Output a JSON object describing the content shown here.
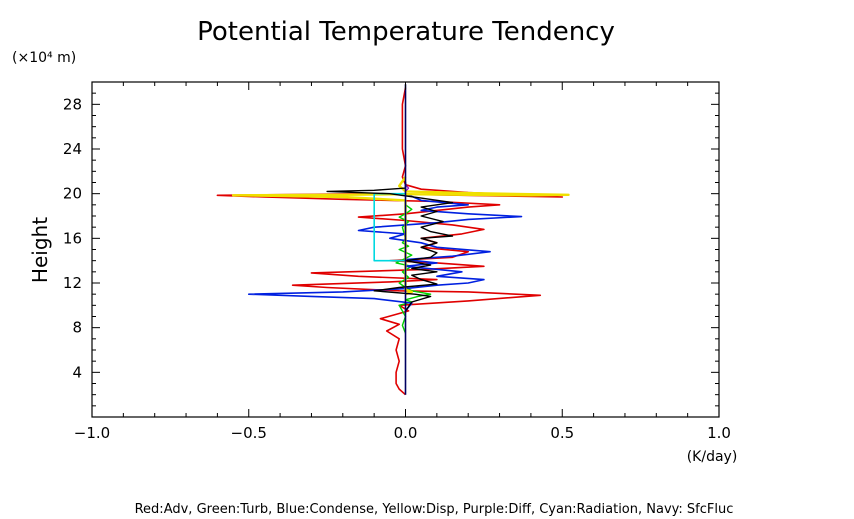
{
  "chart_data": {
    "type": "line",
    "title": "Potential Temperature Tendency",
    "ylabel": "Height",
    "yunit": "(×10⁴ m)",
    "xunit": "(K/day)",
    "xlim": [
      -1.0,
      1.0
    ],
    "ylim": [
      0,
      30
    ],
    "grid": false,
    "legend_text": "Red:Adv, Green:Turb, Blue:Condense, Yellow:Disp, Purple:Diff, Cyan:Radiation, Navy: SfcFluc",
    "x_ticks": [
      {
        "value": -1.0,
        "label": "−1.0"
      },
      {
        "value": -0.5,
        "label": "−0.5"
      },
      {
        "value": 0.0,
        "label": "0.0"
      },
      {
        "value": 0.5,
        "label": "0.5"
      },
      {
        "value": 1.0,
        "label": "1.0"
      }
    ],
    "y_ticks": [
      {
        "value": 4,
        "label": "4"
      },
      {
        "value": 8,
        "label": "8"
      },
      {
        "value": 12,
        "label": "12"
      },
      {
        "value": 16,
        "label": "16"
      },
      {
        "value": 20,
        "label": "20"
      },
      {
        "value": 24,
        "label": "24"
      },
      {
        "value": 28,
        "label": "28"
      }
    ],
    "series": [
      {
        "name": "Adv",
        "color": "#e00000",
        "width": 1.6,
        "points": [
          [
            0,
            2
          ],
          [
            -0.02,
            2.5
          ],
          [
            -0.03,
            3
          ],
          [
            -0.03,
            4
          ],
          [
            -0.02,
            5
          ],
          [
            -0.03,
            6
          ],
          [
            -0.02,
            7
          ],
          [
            -0.06,
            7.7
          ],
          [
            -0.02,
            8.3
          ],
          [
            -0.08,
            8.8
          ],
          [
            0.01,
            9.5
          ],
          [
            -0.02,
            10
          ],
          [
            0.2,
            10.4
          ],
          [
            0.43,
            10.9
          ],
          [
            0.2,
            11.2
          ],
          [
            -0.02,
            11.3
          ],
          [
            -0.25,
            11.6
          ],
          [
            -0.36,
            11.8
          ],
          [
            -0.05,
            12.1
          ],
          [
            0.1,
            12.3
          ],
          [
            -0.15,
            12.6
          ],
          [
            -0.3,
            12.9
          ],
          [
            0.05,
            13.2
          ],
          [
            0.25,
            13.5
          ],
          [
            0.1,
            13.8
          ],
          [
            -0.05,
            14.0
          ],
          [
            0.15,
            14.3
          ],
          [
            0.2,
            14.8
          ],
          [
            0.05,
            15.2
          ],
          [
            0.1,
            15.6
          ],
          [
            0.05,
            16.0
          ],
          [
            0.18,
            16.4
          ],
          [
            0.25,
            16.8
          ],
          [
            0.15,
            17.2
          ],
          [
            0.0,
            17.6
          ],
          [
            -0.15,
            17.9
          ],
          [
            0.0,
            18.2
          ],
          [
            0.1,
            18.5
          ],
          [
            0.2,
            18.8
          ],
          [
            0.3,
            19.0
          ],
          [
            0.1,
            19.3
          ],
          [
            -0.2,
            19.5
          ],
          [
            -0.45,
            19.7
          ],
          [
            -0.6,
            19.85
          ],
          [
            -0.1,
            20.0
          ],
          [
            0.3,
            19.8
          ],
          [
            0.5,
            19.7
          ],
          [
            0.2,
            20.1
          ],
          [
            0.05,
            20.4
          ],
          [
            0.0,
            20.8
          ],
          [
            -0.01,
            21.5
          ],
          [
            0.0,
            22.5
          ],
          [
            -0.01,
            24
          ],
          [
            -0.01,
            26
          ],
          [
            -0.01,
            28
          ],
          [
            0.0,
            29.5
          ]
        ]
      },
      {
        "name": "Turb",
        "color": "#00d000",
        "width": 1.4,
        "points": [
          [
            0,
            7.5
          ],
          [
            -0.01,
            8.2
          ],
          [
            0.0,
            9.0
          ],
          [
            -0.02,
            10.0
          ],
          [
            0.02,
            10.3
          ],
          [
            0.0,
            10.5
          ],
          [
            0.04,
            10.8
          ],
          [
            0.08,
            11.0
          ],
          [
            0.02,
            11.3
          ],
          [
            0.0,
            11.6
          ],
          [
            -0.02,
            12.0
          ],
          [
            0.01,
            12.5
          ],
          [
            -0.01,
            13.0
          ],
          [
            0.02,
            13.5
          ],
          [
            -0.03,
            13.8
          ],
          [
            0.0,
            14.2
          ],
          [
            0.02,
            14.5
          ],
          [
            -0.02,
            15.0
          ],
          [
            0.01,
            15.3
          ],
          [
            -0.01,
            15.6
          ],
          [
            0.0,
            16.0
          ],
          [
            -0.01,
            17.0
          ],
          [
            0.01,
            17.5
          ],
          [
            -0.02,
            17.9
          ],
          [
            0.0,
            18.2
          ],
          [
            0.02,
            18.6
          ],
          [
            0.0,
            19.0
          ]
        ]
      },
      {
        "name": "Condense",
        "color": "#0020e0",
        "width": 1.6,
        "points": [
          [
            0,
            9.5
          ],
          [
            0.02,
            10.2
          ],
          [
            -0.1,
            10.6
          ],
          [
            -0.3,
            10.8
          ],
          [
            -0.5,
            11.0
          ],
          [
            -0.2,
            11.2
          ],
          [
            0.0,
            11.5
          ],
          [
            0.1,
            11.8
          ],
          [
            0.2,
            12.0
          ],
          [
            0.25,
            12.3
          ],
          [
            0.1,
            12.6
          ],
          [
            0.18,
            13.0
          ],
          [
            0.0,
            13.5
          ],
          [
            0.1,
            13.8
          ],
          [
            0.0,
            14.1
          ],
          [
            0.15,
            14.4
          ],
          [
            0.27,
            14.8
          ],
          [
            0.1,
            15.2
          ],
          [
            0.05,
            15.6
          ],
          [
            -0.05,
            16.0
          ],
          [
            0.0,
            16.4
          ],
          [
            -0.15,
            16.7
          ],
          [
            -0.1,
            17.0
          ],
          [
            0.1,
            17.4
          ],
          [
            0.2,
            17.7
          ],
          [
            0.37,
            17.95
          ],
          [
            0.2,
            18.2
          ],
          [
            0.05,
            18.5
          ],
          [
            0.1,
            18.8
          ],
          [
            0.2,
            19.0
          ],
          [
            0.05,
            19.4
          ],
          [
            0.0,
            20.0
          ],
          [
            0.0,
            21.0
          ]
        ]
      },
      {
        "name": "Disp",
        "color": "#f0e000",
        "width": 2.4,
        "points": [
          [
            0,
            11.0
          ],
          [
            0.02,
            11.2
          ],
          [
            0.0,
            11.4
          ],
          [
            0.0,
            19.4
          ],
          [
            -0.2,
            19.7
          ],
          [
            -0.4,
            19.8
          ],
          [
            -0.55,
            19.85
          ],
          [
            -0.2,
            19.9
          ],
          [
            0.0,
            19.95
          ],
          [
            0.2,
            19.9
          ],
          [
            0.4,
            19.85
          ],
          [
            0.52,
            19.9
          ],
          [
            0.2,
            20.05
          ],
          [
            0.0,
            20.2
          ],
          [
            -0.02,
            20.7
          ],
          [
            0.0,
            21.5
          ]
        ]
      },
      {
        "name": "Diff",
        "color": "#9000c0",
        "width": 1.2,
        "points": [
          [
            0,
            20.2
          ],
          [
            0.01,
            20.5
          ],
          [
            0.0,
            20.8
          ]
        ]
      },
      {
        "name": "Radiation",
        "color": "#00d8e0",
        "width": 1.6,
        "points": [
          [
            0,
            14.0
          ],
          [
            -0.1,
            14.0
          ],
          [
            -0.1,
            17.0
          ],
          [
            -0.1,
            20.0
          ],
          [
            0.0,
            20.0
          ]
        ]
      },
      {
        "name": "SfcFluc",
        "color": "#000060",
        "width": 1.6,
        "points": [
          [
            0,
            2
          ],
          [
            0,
            29.8
          ]
        ]
      },
      {
        "name": "Total",
        "color": "#000000",
        "width": 1.4,
        "points": [
          [
            0,
            9.5
          ],
          [
            0.02,
            10.3
          ],
          [
            0.08,
            10.8
          ],
          [
            0.03,
            11.0
          ],
          [
            -0.1,
            11.3
          ],
          [
            -0.02,
            11.6
          ],
          [
            0.1,
            11.9
          ],
          [
            0.05,
            12.3
          ],
          [
            0.02,
            12.7
          ],
          [
            0.1,
            13.0
          ],
          [
            0.02,
            13.3
          ],
          [
            0.08,
            13.6
          ],
          [
            0.0,
            14.0
          ],
          [
            0.08,
            14.3
          ],
          [
            0.1,
            14.7
          ],
          [
            0.05,
            15.2
          ],
          [
            0.1,
            15.6
          ],
          [
            0.05,
            16.0
          ],
          [
            0.15,
            16.2
          ],
          [
            0.08,
            16.6
          ],
          [
            0.05,
            17.0
          ],
          [
            0.12,
            17.5
          ],
          [
            0.05,
            18.0
          ],
          [
            0.1,
            18.4
          ],
          [
            0.05,
            18.8
          ],
          [
            0.15,
            19.2
          ],
          [
            0.05,
            19.6
          ],
          [
            -0.05,
            20.0
          ],
          [
            -0.25,
            20.2
          ],
          [
            -0.1,
            20.3
          ],
          [
            0.0,
            20.5
          ],
          [
            0.0,
            21.0
          ]
        ]
      }
    ]
  }
}
